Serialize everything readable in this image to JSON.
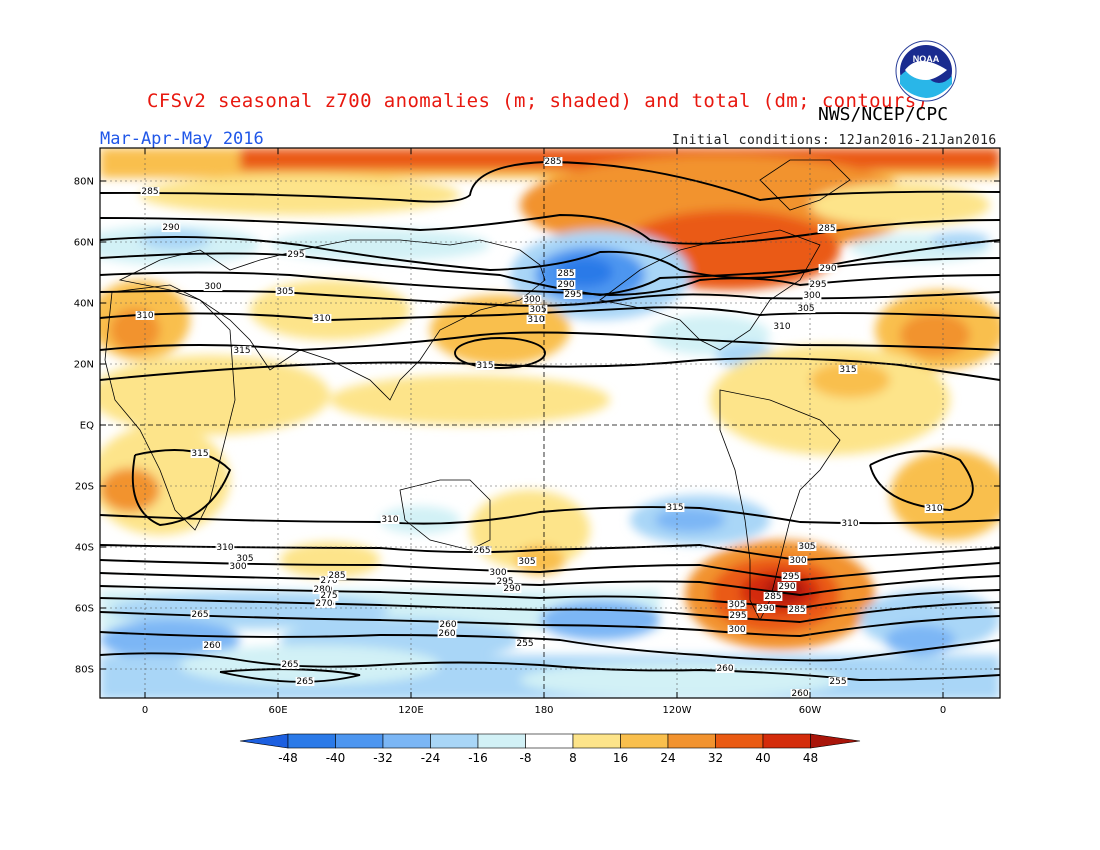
{
  "title": "CFSv2 seasonal z700 anomalies (m; shaded) and total (dm; contours)",
  "organization": "NWS/NCEP/CPC",
  "season": "Mar-Apr-May 2016",
  "initial_conditions": "Initial conditions: 12Jan2016-21Jan2016",
  "logo_text": "NOAA",
  "lat_ticks": [
    "80N",
    "60N",
    "40N",
    "20N",
    "EQ",
    "20S",
    "40S",
    "60S",
    "80S"
  ],
  "lon_ticks": [
    "0",
    "60E",
    "120E",
    "180",
    "120W",
    "60W",
    "0"
  ],
  "colorbar": {
    "labels": [
      "-48",
      "-40",
      "-32",
      "-24",
      "-16",
      "-8",
      "8",
      "16",
      "24",
      "32",
      "40",
      "48"
    ],
    "colors": [
      "#1c5fe0",
      "#2b7ae8",
      "#4d96f0",
      "#7bb6f5",
      "#a9d6f7",
      "#d2f1f6",
      "#ffffff",
      "#fde48a",
      "#f9bf4d",
      "#f2932f",
      "#ea5a12",
      "#d42c0b",
      "#a9150a"
    ]
  },
  "contour_labels": [
    "285",
    "285",
    "290",
    "295",
    "300",
    "305",
    "310",
    "315",
    "285",
    "290",
    "295",
    "300",
    "305",
    "310",
    "315",
    "285",
    "290",
    "295",
    "300",
    "305",
    "310",
    "315",
    "310",
    "315",
    "310",
    "315",
    "310",
    "310",
    "310",
    "305",
    "300",
    "295",
    "290",
    "280",
    "275",
    "270",
    "265",
    "305",
    "300",
    "295",
    "290",
    "285",
    "280",
    "275",
    "270",
    "265",
    "260",
    "260",
    "255",
    "260",
    "265",
    "265",
    "260",
    "255",
    "260",
    "285",
    "295",
    "290",
    "300",
    "305",
    "285",
    "290",
    "295",
    "300",
    "305",
    "310"
  ]
}
